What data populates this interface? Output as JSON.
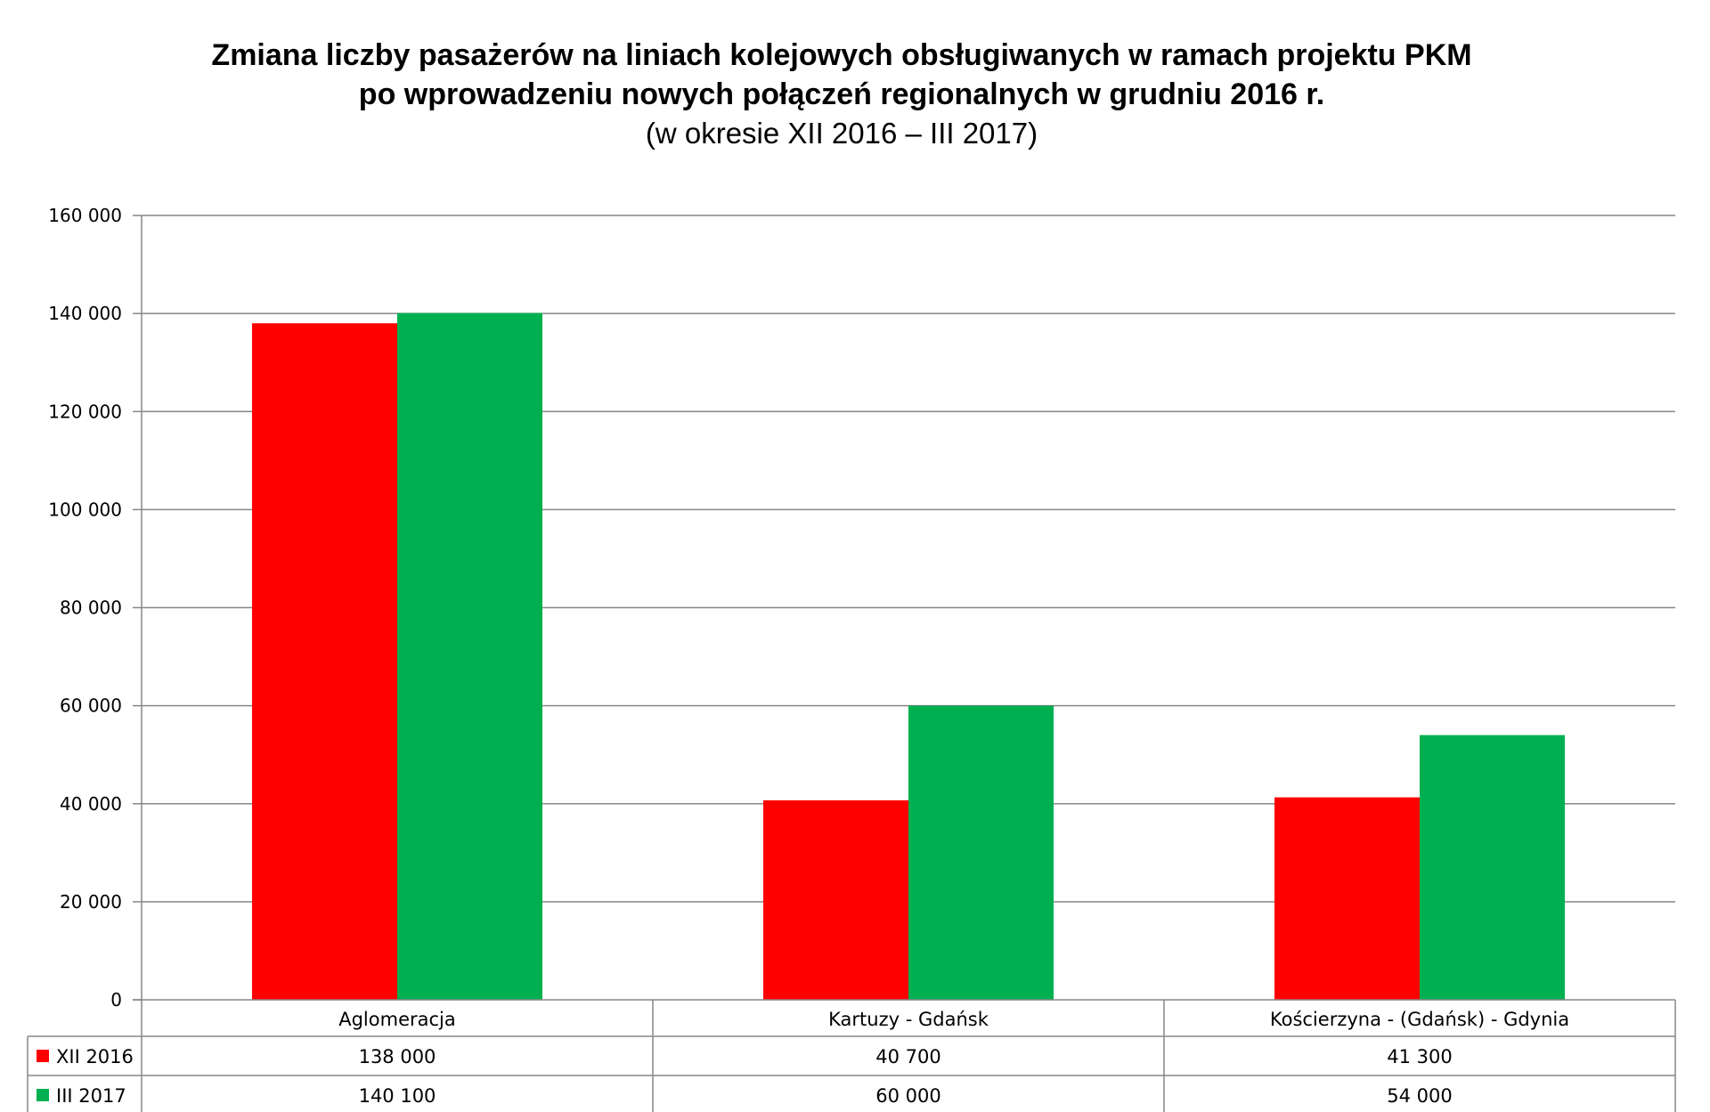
{
  "chart_data": {
    "type": "bar",
    "title": "Zmiana liczby pasażerów na liniach kolejowych obsługiwanych w ramach projektu PKM",
    "title_line2": "po wprowadzeniu nowych połączeń regionalnych w grudniu 2016 r.",
    "subtitle": "(w okresie XII 2016 – III 2017)",
    "categories": [
      "Aglomeracja",
      "Kartuzy - Gdańsk",
      "Kościerzyna - (Gdańsk) - Gdynia"
    ],
    "series": [
      {
        "name": "XII 2016",
        "values": [
          138000,
          40700,
          41300
        ],
        "value_labels": [
          "138 000",
          "40 700",
          "41 300"
        ],
        "color": "#ff0000"
      },
      {
        "name": "III 2017",
        "values": [
          140100,
          60000,
          54000
        ],
        "value_labels": [
          "140 100",
          "60 000",
          "54 000"
        ],
        "color": "#00b050"
      }
    ],
    "ylim": [
      0,
      160000
    ],
    "yticks": [
      0,
      20000,
      40000,
      60000,
      80000,
      100000,
      120000,
      140000,
      160000
    ],
    "ytick_labels": [
      "0",
      "20 000",
      "40 000",
      "60 000",
      "80 000",
      "100 000",
      "120 000",
      "140 000",
      "160 000"
    ],
    "grid": true,
    "legend": "data-table",
    "xlabel": "",
    "ylabel": ""
  }
}
